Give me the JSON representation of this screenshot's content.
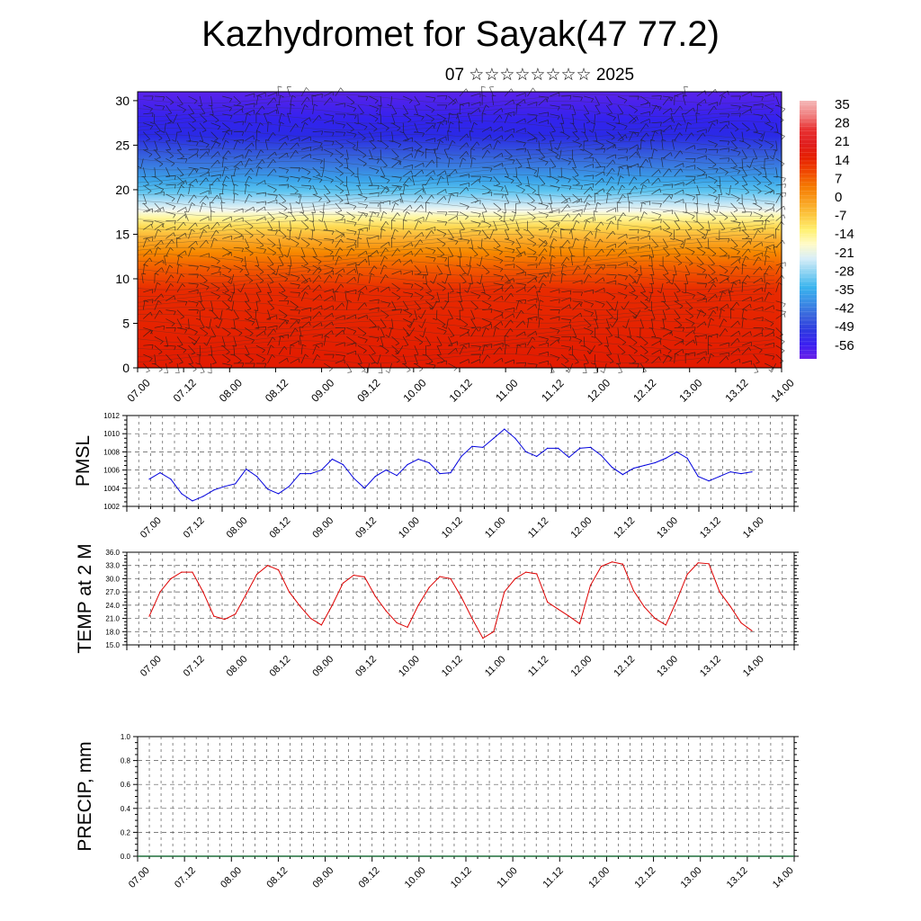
{
  "page": {
    "title": "Kazhydromet for Sayak(47 77.2)",
    "subtitle": "07 ☆☆☆☆☆☆☆☆ 2025"
  },
  "colors": {
    "pmsl_line": "#0000dd",
    "temp_line": "#dd0000",
    "grid": "#666666"
  },
  "chart_data": [
    {
      "type": "heatmap",
      "title": "",
      "x_tick_labels": [
        "07.00",
        "07.12",
        "08.00",
        "08.12",
        "09.00",
        "09.12",
        "10.00",
        "10.12",
        "11.00",
        "11.12",
        "12.00",
        "12.12",
        "13.00",
        "13.12",
        "14.00"
      ],
      "y_ticks": [
        0,
        5,
        10,
        15,
        20,
        25,
        30
      ],
      "ylim": [
        0,
        31
      ],
      "colorbar_labels": [
        "35",
        "28",
        "21",
        "14",
        "7",
        "0",
        "-7",
        "-14",
        "-21",
        "-28",
        "-35",
        "-42",
        "-49",
        "-56"
      ],
      "colorbar_colors": [
        "#f4b8b8",
        "#f08080",
        "#e83232",
        "#e01e1e",
        "#e62000",
        "#f04a00",
        "#f57a00",
        "#f9a020",
        "#fcc740",
        "#fff070",
        "#fffbc8",
        "#d8eef8",
        "#8ad2f2",
        "#3ab4ee",
        "#3a8fe6",
        "#3a64dc",
        "#2e3ae0",
        "#3a20f0",
        "#6a20e8"
      ],
      "note_wind_barbs": true
    },
    {
      "type": "line",
      "ylabel": "PMSL",
      "ylim": [
        1002,
        1012
      ],
      "y_ticks": [
        1002,
        1004,
        1006,
        1008,
        1010,
        1012
      ],
      "x_tick_labels": [
        "07.00",
        "07.12",
        "08.00",
        "08.12",
        "09.00",
        "09.12",
        "10.00",
        "10.12",
        "11.00",
        "11.12",
        "12.00",
        "12.12",
        "13.00",
        "13.12",
        "14.00"
      ],
      "series": [
        {
          "values": [
            1005.0,
            1005.7,
            1005.0,
            1003.4,
            1002.6,
            1003.1,
            1003.8,
            1004.2,
            1004.5,
            1006.1,
            1005.3,
            1003.9,
            1003.4,
            1004.2,
            1005.6,
            1005.6,
            1006.0,
            1007.2,
            1006.6,
            1005.1,
            1004.0,
            1005.3,
            1006.0,
            1005.4,
            1006.6,
            1007.2,
            1006.8,
            1005.6,
            1005.7,
            1007.5,
            1008.6,
            1008.5,
            1009.5,
            1010.5,
            1009.5,
            1008.0,
            1007.5,
            1008.4,
            1008.4,
            1007.4,
            1008.4,
            1008.5,
            1007.6,
            1006.3,
            1005.5,
            1006.2,
            1006.5,
            1006.8,
            1007.3,
            1008.0,
            1007.3,
            1005.3,
            1004.8,
            1005.3,
            1005.8,
            1005.6,
            1005.8
          ]
        }
      ]
    },
    {
      "type": "line",
      "ylabel": "TEMP at 2 M",
      "ylim": [
        15.0,
        36.0
      ],
      "y_ticks": [
        "15.0",
        "18.0",
        "21.0",
        "24.0",
        "27.0",
        "30.0",
        "33.0",
        "36.0"
      ],
      "x_tick_labels": [
        "07.00",
        "07.12",
        "08.00",
        "08.12",
        "09.00",
        "09.12",
        "10.00",
        "10.12",
        "11.00",
        "11.12",
        "12.00",
        "12.12",
        "13.00",
        "13.12",
        "14.00"
      ],
      "series": [
        {
          "values": [
            21.5,
            27.0,
            30.0,
            31.5,
            31.5,
            27.0,
            21.5,
            20.8,
            22.0,
            26.5,
            31.0,
            33.0,
            32.0,
            27.0,
            23.8,
            21.0,
            19.5,
            24.0,
            29.0,
            30.8,
            30.4,
            26.0,
            22.7,
            20.0,
            19.0,
            24.0,
            28.0,
            30.5,
            30.0,
            25.8,
            21.0,
            16.5,
            18.0,
            27.0,
            30.0,
            31.5,
            31.1,
            24.7,
            23.1,
            21.5,
            19.8,
            28.5,
            32.8,
            33.8,
            33.3,
            27.3,
            23.6,
            21.0,
            19.5,
            25.0,
            31.0,
            33.6,
            33.4,
            27.0,
            23.7,
            20.0,
            18.2
          ]
        }
      ]
    },
    {
      "type": "bar",
      "ylabel": "PRECIP, mm",
      "ylim": [
        0.0,
        1.0
      ],
      "y_ticks": [
        "0.0",
        "0.2",
        "0.4",
        "0.6",
        "0.8",
        "1.0"
      ],
      "x_tick_labels": [
        "07.00",
        "07.12",
        "08.00",
        "08.12",
        "09.00",
        "09.12",
        "10.00",
        "10.12",
        "11.00",
        "11.12",
        "12.00",
        "12.12",
        "13.00",
        "13.12",
        "14.00"
      ],
      "values": [
        0,
        0,
        0,
        0,
        0,
        0,
        0,
        0,
        0,
        0,
        0,
        0,
        0,
        0,
        0,
        0,
        0,
        0,
        0,
        0,
        0,
        0,
        0,
        0,
        0,
        0,
        0,
        0,
        0,
        0,
        0,
        0,
        0,
        0,
        0,
        0,
        0,
        0,
        0,
        0,
        0,
        0,
        0,
        0,
        0,
        0,
        0,
        0,
        0,
        0,
        0,
        0,
        0,
        0,
        0,
        0,
        0
      ]
    }
  ]
}
